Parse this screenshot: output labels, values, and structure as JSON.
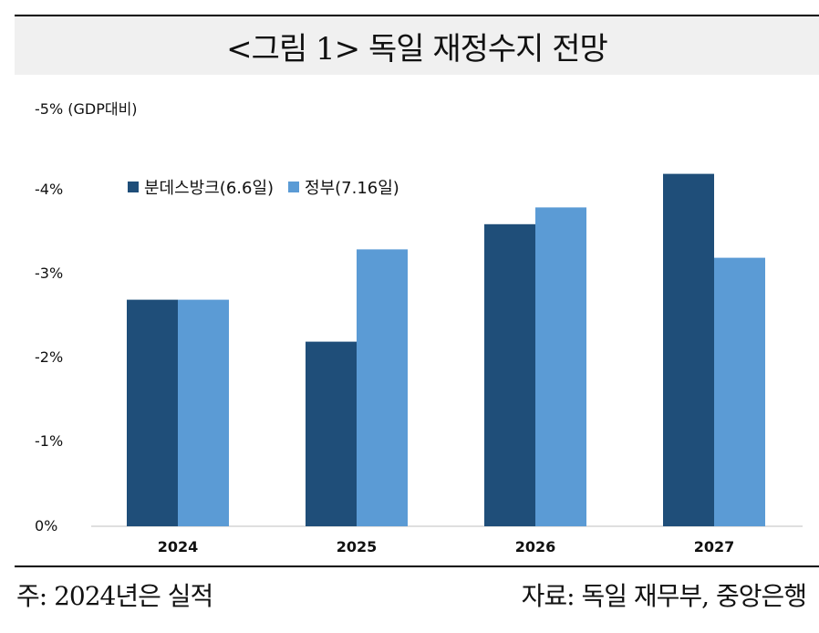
{
  "title": "<그림 1> 독일 재정수지 전망",
  "footer": {
    "note": "주: 2024년은 실적",
    "source": "자료: 독일 재무부, 중앙은행"
  },
  "chart_data": {
    "type": "bar",
    "title": "<그림 1> 독일 재정수지 전망",
    "ylabel": "-5% (GDP대비)",
    "xlabel": "",
    "categories": [
      "2024",
      "2025",
      "2026",
      "2027"
    ],
    "yticks": [
      "0%",
      "-1%",
      "-2%",
      "-3%",
      "-4%"
    ],
    "ylim": [
      0,
      -5
    ],
    "legend_position": "top-left",
    "grid": false,
    "series": [
      {
        "name": "분데스방크(6.6일)",
        "values": [
          -2.7,
          -2.2,
          -3.6,
          -4.2
        ],
        "color": "#1f4e79"
      },
      {
        "name": "정부(7.16일)",
        "values": [
          -2.7,
          -3.3,
          -3.8,
          -3.2
        ],
        "color": "#5b9bd5"
      }
    ]
  }
}
